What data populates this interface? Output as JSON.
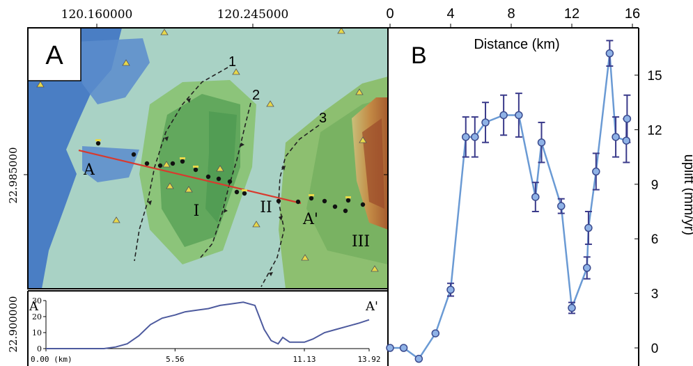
{
  "map": {
    "panel_label": "A",
    "top_ticks": [
      "120.160000",
      "120.245000"
    ],
    "left_ticks": [
      "22.985000",
      "22.900000"
    ],
    "fault_labels": [
      "1",
      "2",
      "3"
    ],
    "block_labels": [
      "I",
      "II",
      "III"
    ],
    "profile_start_label": "A",
    "profile_end_label": "A'",
    "colors": {
      "sea": "#4a7ec4",
      "lowland": "#b7d7cc",
      "hill": "#6fb86a",
      "mountain": "#b8783a",
      "profile_line": "#d83a2e",
      "fault": "#222222"
    }
  },
  "elevation_profile": {
    "start_label": "A",
    "end_label": "A'",
    "y_ticks": [
      "30",
      "20",
      "10",
      "0"
    ],
    "x_ticks": [
      "0.00 (km)",
      "5.56",
      "11.13",
      "13.92"
    ],
    "x_values": [
      0.0,
      5.56,
      11.13,
      13.92
    ],
    "profile_km": [
      0,
      0.5,
      1.0,
      1.5,
      2.0,
      2.5,
      3.0,
      3.5,
      4.0,
      4.5,
      5.0,
      5.56,
      6.0,
      6.5,
      7.0,
      7.5,
      8.0,
      8.5,
      9.0,
      9.4,
      9.7,
      10.0,
      10.2,
      10.5,
      11.13,
      11.5,
      12.0,
      12.5,
      13.0,
      13.5,
      13.92
    ],
    "profile_elev": [
      0,
      0,
      0,
      0,
      0,
      0,
      1,
      3,
      8,
      15,
      19,
      21,
      23,
      24,
      25,
      27,
      28,
      29,
      27,
      12,
      5,
      3,
      7,
      4,
      4,
      6,
      10,
      12,
      14,
      16,
      18
    ],
    "color": "#4d5a9e"
  },
  "chart_data": {
    "type": "line",
    "title": "B",
    "xlabel": "Distance (km)",
    "ylabel": "uplift (mm/yr)",
    "xlim": [
      0,
      16
    ],
    "ylim": [
      -1,
      17
    ],
    "x_ticks": [
      0,
      4,
      8,
      12,
      16
    ],
    "y_ticks": [
      0,
      3,
      6,
      9,
      12,
      15
    ],
    "x": [
      0.0,
      0.9,
      1.9,
      3.0,
      4.0,
      5.0,
      5.6,
      6.3,
      7.5,
      8.5,
      9.6,
      10.0,
      11.3,
      12.0,
      13.0,
      13.1,
      13.6,
      14.5,
      14.9,
      15.6,
      15.65
    ],
    "y": [
      0.0,
      0.0,
      -0.6,
      0.8,
      3.2,
      11.6,
      11.6,
      12.4,
      12.8,
      12.8,
      8.3,
      11.3,
      7.8,
      2.2,
      4.4,
      6.6,
      9.7,
      16.2,
      11.6,
      11.4,
      12.6
    ],
    "err": [
      0,
      0,
      0,
      0,
      0.35,
      1.1,
      1.1,
      1.1,
      1.1,
      1.2,
      0.8,
      1.1,
      0.4,
      0.3,
      0.6,
      0.9,
      1.0,
      0.7,
      1.1,
      1.2,
      1.3
    ],
    "colors": {
      "line": "#6a9ad4",
      "marker": "#8fb2e6",
      "marker_edge": "#3a4a8e",
      "error": "#3a3a8a"
    }
  }
}
